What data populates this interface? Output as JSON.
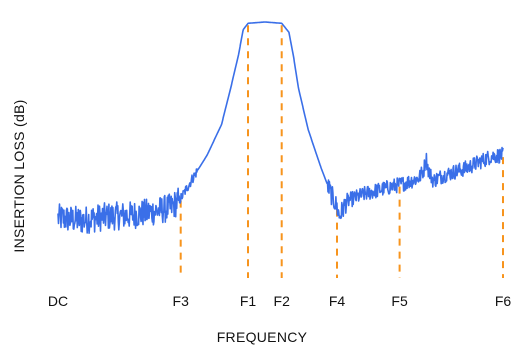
{
  "chart_data": {
    "type": "line",
    "title": "",
    "xlabel": "FREQUENCY",
    "ylabel": "INSERTION LOSS (dB)",
    "x_tick_labels": [
      "DC",
      "F3",
      "F1",
      "F2",
      "F4",
      "F5",
      "F6"
    ],
    "x_tick_positions": [
      0,
      0.255,
      0.395,
      0.465,
      0.58,
      0.71,
      0.925
    ],
    "xlim": [
      0,
      0.925
    ],
    "ylim": [
      0,
      1
    ],
    "grid": false,
    "legend": "none",
    "markers": {
      "frequencies": [
        "F3",
        "F1",
        "F2",
        "F4",
        "F5",
        "F6"
      ],
      "style": "dashed",
      "color": "#f7941d"
    },
    "series": [
      {
        "color": "#3a6fe8",
        "x": [
          0,
          0.05,
          0.1,
          0.15,
          0.2,
          0.235,
          0.255,
          0.28,
          0.31,
          0.34,
          0.36,
          0.375,
          0.385,
          0.395,
          0.43,
          0.465,
          0.48,
          0.49,
          0.5,
          0.52,
          0.545,
          0.565,
          0.58,
          0.585,
          0.6,
          0.64,
          0.68,
          0.72,
          0.75,
          0.76,
          0.765,
          0.77,
          0.78,
          0.8,
          0.85,
          0.9,
          0.925
        ],
        "y": [
          0.235,
          0.225,
          0.24,
          0.245,
          0.26,
          0.275,
          0.31,
          0.39,
          0.48,
          0.6,
          0.75,
          0.87,
          0.97,
          0.995,
          1.0,
          0.995,
          0.96,
          0.86,
          0.74,
          0.58,
          0.44,
          0.34,
          0.275,
          0.24,
          0.3,
          0.33,
          0.35,
          0.37,
          0.39,
          0.42,
          0.47,
          0.42,
          0.38,
          0.4,
          0.43,
          0.475,
          0.48
        ]
      }
    ]
  }
}
